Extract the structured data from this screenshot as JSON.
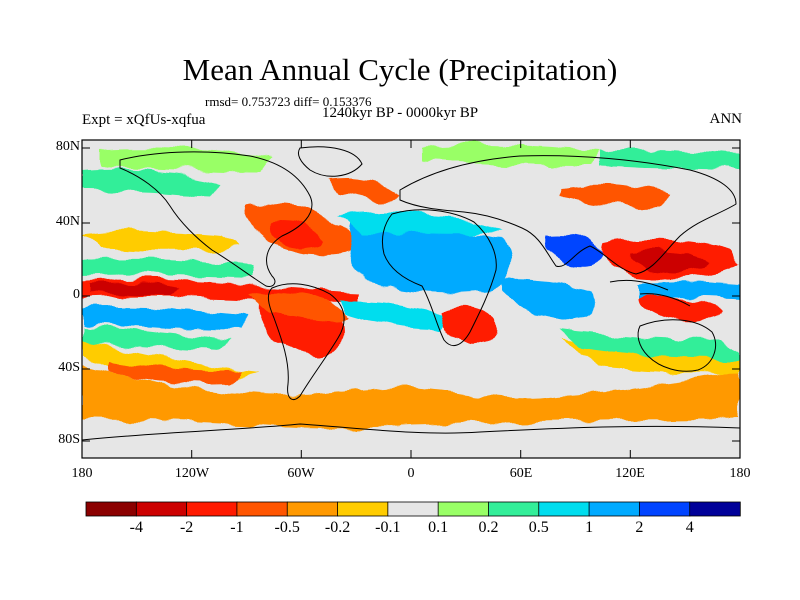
{
  "title": "Mean Annual Cycle (Precipitation)",
  "stats_line": "rmsd= 0.753723 diff= 0.153376",
  "period": "1240kyr BP - 0000kyr BP",
  "experiment": "Expt = xQfUs-xqfua",
  "season": "ANN",
  "lat_labels": [
    "80N",
    "40N",
    "0",
    "40S",
    "80S"
  ],
  "lon_labels": [
    "180",
    "120W",
    "60W",
    "0",
    "60E",
    "120E",
    "180"
  ],
  "colorbar": {
    "labels": [
      "-4",
      "-2",
      "-1",
      "-0.5",
      "-0.2",
      "-0.1",
      "0.1",
      "0.2",
      "0.5",
      "1",
      "2",
      "4"
    ],
    "colors": [
      "#8b0000",
      "#cc0000",
      "#ff1a00",
      "#ff5500",
      "#ff9900",
      "#ffcc00",
      "#e6e6e6",
      "#99ff66",
      "#33ee99",
      "#00ddee",
      "#00aaff",
      "#0044ff",
      "#000099"
    ]
  }
}
